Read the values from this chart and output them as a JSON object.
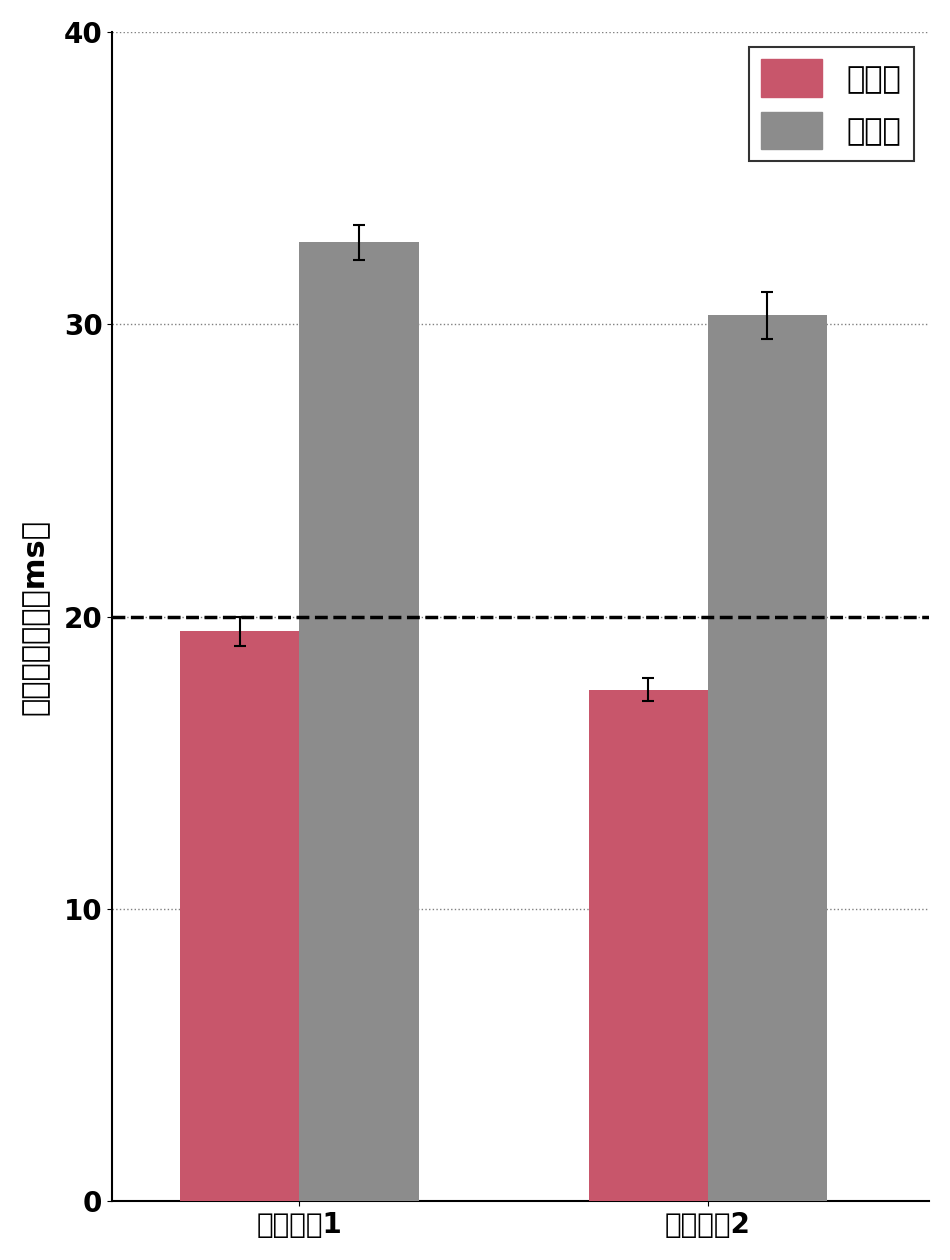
{
  "categories": [
    "実験環境1",
    "実験環境2"
  ],
  "proposed_values": [
    19.5,
    17.5
  ],
  "proposed_errors": [
    0.5,
    0.4
  ],
  "conventional_values": [
    32.8,
    30.3
  ],
  "conventional_errors": [
    0.6,
    0.8
  ],
  "proposed_color": "#C8566B",
  "conventional_color": "#8C8C8C",
  "background_color": "#FFFFFF",
  "ylabel": "最大計算時間（ms）",
  "ylim": [
    0,
    40
  ],
  "yticks": [
    0,
    10,
    20,
    30,
    40
  ],
  "dashed_line_y": 20,
  "legend_labels": [
    "提案法",
    "従来法"
  ],
  "bar_width": 0.35,
  "title_fontsize": 22,
  "axis_fontsize": 22,
  "tick_fontsize": 20,
  "legend_fontsize": 22,
  "group_positions": [
    1.0,
    2.2
  ],
  "figsize": [
    9.5,
    12.6
  ]
}
